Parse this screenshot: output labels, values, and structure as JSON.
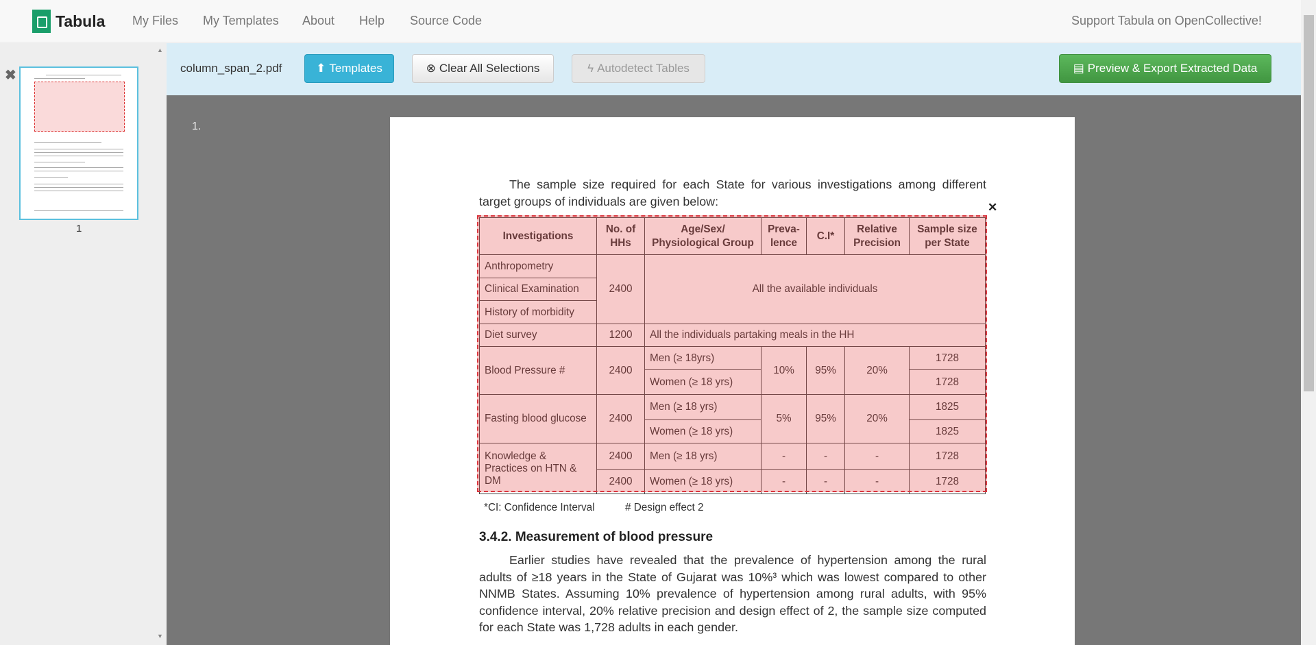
{
  "nav": {
    "brand": "Tabula",
    "links": [
      "My Files",
      "My Templates",
      "About",
      "Help",
      "Source Code"
    ],
    "support": "Support Tabula on OpenCollective!"
  },
  "toolbar": {
    "filename": "column_span_2.pdf",
    "templates": "Templates",
    "clear": "Clear All Selections",
    "autodetect": "Autodetect Tables",
    "export": "Preview & Export Extracted Data"
  },
  "sidebar": {
    "page_label": "1"
  },
  "viewer": {
    "page_number": "1."
  },
  "colors": {
    "accent": "#5bc0de",
    "export": "#47a447",
    "selection": "#d9363e",
    "toolbar_bg": "#d9edf7"
  },
  "document": {
    "intro": "The sample size required for each State for various investigations among different target groups of individuals are given below:",
    "table": {
      "headers": [
        "Investigations",
        "No. of HHs",
        "Age/Sex/ Physiological Group",
        "Preva- lence",
        "C.I*",
        "Relative Precision",
        "Sample size per State"
      ],
      "anthro": "Anthropometry",
      "clinical": "Clinical Examination",
      "history": "History of morbidity",
      "hh2400": "2400",
      "all_individuals": "All the available individuals",
      "diet": "Diet survey",
      "diet_hh": "1200",
      "diet_group": "All the individuals partaking meals in the HH",
      "bp": {
        "label": "Blood Pressure #",
        "hh": "2400",
        "men": "Men (≥ 18yrs)",
        "women": "Women (≥ 18 yrs)",
        "prev": "10%",
        "ci": "95%",
        "prec": "20%",
        "men_n": "1728",
        "women_n": "1728"
      },
      "fbg": {
        "label": "Fasting blood glucose",
        "hh": "2400",
        "men": "Men (≥ 18 yrs)",
        "women": "Women (≥ 18 yrs)",
        "prev": "5%",
        "ci": "95%",
        "prec": "20%",
        "men_n": "1825",
        "women_n": "1825"
      },
      "kp": {
        "label": "Knowledge & Practices on HTN & DM",
        "hh_men": "2400",
        "hh_women": "2400",
        "men": "Men (≥ 18 yrs)",
        "women": "Women (≥ 18 yrs)",
        "dash": "-",
        "men_n": "1728",
        "women_n": "1728"
      }
    },
    "footnote1": "*CI: Confidence Interval",
    "footnote2": "# Design effect 2",
    "heading": "3.4.2. Measurement of blood pressure",
    "body": "Earlier studies have revealed that the prevalence of hypertension among the rural adults of ≥18 years in the State of Gujarat was 10%³ which was lowest compared to other NNMB States. Assuming 10% prevalence of hypertension among rural adults, with 95% confidence interval, 20% relative precision and design effect of 2, the sample size computed for each State was 1,728 adults in each gender."
  }
}
